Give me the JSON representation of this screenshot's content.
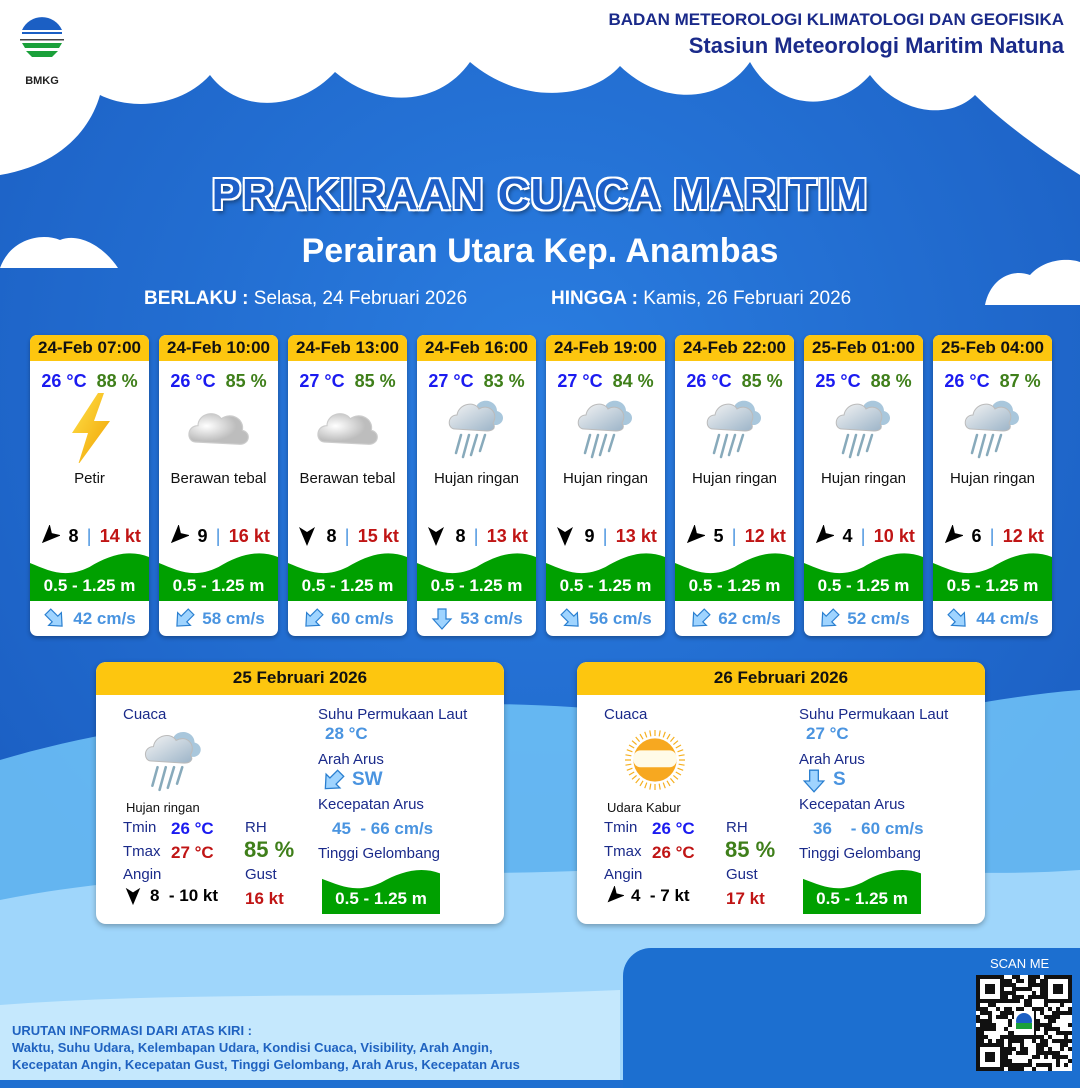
{
  "header": {
    "agency": "BADAN METEOROLOGI KLIMATOLOGI DAN GEOFISIKA",
    "station": "Stasiun Meteorologi Maritim Natuna",
    "logo_text": "BMKG"
  },
  "title": "PRAKIRAAN CUACA MARITIM",
  "area": "Perairan Utara Kep. Anambas",
  "validity": {
    "from_label": "BERLAKU :",
    "from": "Selasa, 24 Februari 2026",
    "to_label": "HINGGA :",
    "to": "Kamis, 26 Februari 2026"
  },
  "colors": {
    "header_yellow": "#fdc60f",
    "wave_green": "#00a000",
    "temp_blue": "#1b1bf0",
    "rh_green": "#3f7f1a",
    "gust_red": "#c01515",
    "current_blue": "#4a94e0"
  },
  "forecasts": [
    {
      "time": "24-Feb 07:00",
      "temp": "26 °C",
      "rh": "88 %",
      "icon": "lightning-icon",
      "condition": "Petir",
      "wind": "8",
      "wind_dir_deg": 225,
      "gust": "14 kt",
      "wave": "0.5 - 1.25 m",
      "current": "42 cm/s",
      "current_dir_deg": 135
    },
    {
      "time": "24-Feb 10:00",
      "temp": "26 °C",
      "rh": "85 %",
      "icon": "cloud-icon",
      "condition": "Berawan tebal",
      "wind": "9",
      "wind_dir_deg": 225,
      "gust": "16 kt",
      "wave": "0.5 - 1.25 m",
      "current": "58 cm/s",
      "current_dir_deg": 225
    },
    {
      "time": "24-Feb 13:00",
      "temp": "27 °C",
      "rh": "85 %",
      "icon": "cloud-icon",
      "condition": "Berawan tebal",
      "wind": "8",
      "wind_dir_deg": 180,
      "gust": "15 kt",
      "wave": "0.5 - 1.25 m",
      "current": "60 cm/s",
      "current_dir_deg": 225
    },
    {
      "time": "24-Feb 16:00",
      "temp": "27 °C",
      "rh": "83 %",
      "icon": "rain-cloud-icon",
      "condition": "Hujan ringan",
      "wind": "8",
      "wind_dir_deg": 180,
      "gust": "13 kt",
      "wave": "0.5 - 1.25 m",
      "current": "53 cm/s",
      "current_dir_deg": 180
    },
    {
      "time": "24-Feb 19:00",
      "temp": "27 °C",
      "rh": "84 %",
      "icon": "rain-cloud-icon",
      "condition": "Hujan ringan",
      "wind": "9",
      "wind_dir_deg": 180,
      "gust": "13 kt",
      "wave": "0.5 - 1.25 m",
      "current": "56 cm/s",
      "current_dir_deg": 135
    },
    {
      "time": "24-Feb 22:00",
      "temp": "26 °C",
      "rh": "85 %",
      "icon": "rain-cloud-icon",
      "condition": "Hujan ringan",
      "wind": "5",
      "wind_dir_deg": 225,
      "gust": "12 kt",
      "wave": "0.5 - 1.25 m",
      "current": "62 cm/s",
      "current_dir_deg": 225
    },
    {
      "time": "25-Feb 01:00",
      "temp": "25 °C",
      "rh": "88 %",
      "icon": "rain-cloud-icon",
      "condition": "Hujan ringan",
      "wind": "4",
      "wind_dir_deg": 225,
      "gust": "10 kt",
      "wave": "0.5 - 1.25 m",
      "current": "52 cm/s",
      "current_dir_deg": 225
    },
    {
      "time": "25-Feb 04:00",
      "temp": "26 °C",
      "rh": "87 %",
      "icon": "rain-cloud-icon",
      "condition": "Hujan ringan",
      "wind": "6",
      "wind_dir_deg": 225,
      "gust": "12 kt",
      "wave": "0.5 - 1.25 m",
      "current": "44 cm/s",
      "current_dir_deg": 135
    }
  ],
  "labels": {
    "weather": "Cuaca",
    "sst": "Suhu Permukaan Laut",
    "current_dir": "Arah Arus",
    "current_speed": "Kecepatan Arus",
    "wave": "Tinggi Gelombang",
    "tmin": "Tmin",
    "tmax": "Tmax",
    "rh": "RH",
    "wind": "Angin",
    "gust": "Gust"
  },
  "daily": [
    {
      "date": "25 Februari 2026",
      "icon": "rain-cloud-icon",
      "condition": "Hujan ringan",
      "tmin": "26 °C",
      "tmax": "27 °C",
      "rh": "85 %",
      "wind": "8  - 10 kt",
      "wind_dir_deg": 180,
      "gust": "16 kt",
      "sst": "28 °C",
      "current_dir": "SW",
      "current_dir_deg": 225,
      "current_speed": "45  - 66 cm/s",
      "wave": "0.5 - 1.25 m"
    },
    {
      "date": "26 Februari 2026",
      "icon": "hazy-sun-icon",
      "condition": "Udara Kabur",
      "tmin": "26 °C",
      "tmax": "26 °C",
      "rh": "85 %",
      "wind": "4  - 7 kt",
      "wind_dir_deg": 225,
      "gust": "17 kt",
      "sst": "27 °C",
      "current_dir": "S",
      "current_dir_deg": 180,
      "current_speed": "36    - 60 cm/s",
      "wave": "0.5 - 1.25 m"
    }
  ],
  "footer": {
    "heading": "URUTAN INFORMASI DARI ATAS KIRI :",
    "line1": "Waktu, Suhu Udara, Kelembapan Udara, Kondisi Cuaca, Visibility, Arah Angin,",
    "line2": "Kecepatan Angin, Kecepatan Gust, Tinggi Gelombang, Arah Arus, Kecepatan Arus",
    "scan": "SCAN ME"
  }
}
